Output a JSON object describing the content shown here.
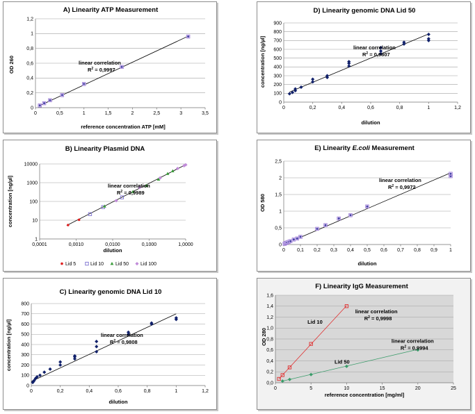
{
  "chart_data": [
    {
      "id": "A",
      "type": "scatter",
      "title": "A) Linearity ATP Measurement",
      "xlabel": "reference concentration ATP [mM]",
      "ylabel": "OD 260",
      "xlim": [
        0,
        3.5
      ],
      "ylim": [
        0,
        1.2
      ],
      "xticks": [
        0,
        0.5,
        1,
        1.5,
        2,
        2.5,
        3,
        3.5
      ],
      "yticks": [
        0,
        0.2,
        0.4,
        0.6,
        0.8,
        1,
        1.2
      ],
      "xtick_labels": [
        "0",
        "0,5",
        "1",
        "1,5",
        "2",
        "2,5",
        "3",
        "3,5"
      ],
      "ytick_labels": [
        "0",
        "0,2",
        "0,4",
        "0,6",
        "0,8",
        "1",
        "1,2"
      ],
      "grid": "horizontal",
      "annotation": [
        "linear correlation",
        "R",
        "2",
        " = 0,9997"
      ],
      "series": [
        {
          "marker": "mixed-purple",
          "x": [
            0.09,
            0.18,
            0.3,
            0.55,
            1.0,
            1.78,
            3.15
          ],
          "y": [
            0.03,
            0.06,
            0.1,
            0.17,
            0.32,
            0.55,
            0.96
          ]
        }
      ],
      "trendline": [
        [
          0.08,
          0.025
        ],
        [
          3.15,
          0.965
        ]
      ]
    },
    {
      "id": "B",
      "type": "scatter",
      "title": "B) Linearity Plasmid DNA",
      "xlabel": "dilution",
      "ylabel": "concentration [ng/µl]",
      "xscale": "log",
      "yscale": "log",
      "xlim": [
        0.0001,
        1
      ],
      "ylim": [
        1,
        10000
      ],
      "xticks": [
        0.0001,
        0.001,
        0.01,
        0.1,
        1
      ],
      "yticks": [
        1,
        10,
        100,
        1000,
        10000
      ],
      "xtick_labels": [
        "0,0001",
        "0,0010",
        "0,0100",
        "0,1000",
        "1,0000"
      ],
      "ytick_labels": [
        "1",
        "10",
        "100",
        "1000",
        "10000"
      ],
      "grid": "horizontal",
      "annotation": [
        "linear correlation",
        "R",
        "2",
        " = 0,9989"
      ],
      "legend": {
        "position": "bottom",
        "entries": [
          "Lid 5",
          "Lid 10",
          "Lid 50",
          "Lid 100"
        ]
      },
      "series": [
        {
          "name": "Lid 5",
          "color": "#e02020",
          "marker": "dot",
          "x": [
            0.0006,
            0.0012
          ],
          "y": [
            5.5,
            10.5
          ]
        },
        {
          "name": "Lid 10",
          "color": "#7a6fcf",
          "marker": "square",
          "x": [
            0.0024,
            0.0055,
            0.018
          ],
          "y": [
            21,
            50,
            165
          ]
        },
        {
          "name": "Lid 50",
          "color": "#3a9c3a",
          "marker": "triangle",
          "x": [
            0.006,
            0.036,
            0.085,
            0.18,
            0.32,
            0.44
          ],
          "y": [
            55,
            330,
            700,
            1500,
            3000,
            4200
          ]
        },
        {
          "name": "Lid 100",
          "color": "#c08ad8",
          "marker": "diamond",
          "x": [
            0.0125,
            0.055,
            0.2,
            0.6,
            0.9,
            1.0
          ],
          "y": [
            110,
            560,
            1800,
            5700,
            8000,
            9000
          ]
        }
      ],
      "trendline": [
        [
          0.00055,
          5.2
        ],
        [
          1.0,
          9200
        ]
      ]
    },
    {
      "id": "C",
      "type": "scatter",
      "title": "C) Linearity genomic DNA Lid 10",
      "xlabel": "dilution",
      "ylabel": "concentration [ng/µl]",
      "xlim": [
        0,
        1.2
      ],
      "ylim": [
        0,
        800
      ],
      "xticks": [
        0,
        0.2,
        0.4,
        0.6,
        0.8,
        1,
        1.2
      ],
      "yticks": [
        0,
        100,
        200,
        300,
        400,
        500,
        600,
        700,
        800
      ],
      "xtick_labels": [
        "0",
        "0,2",
        "0,4",
        "0,6",
        "0,8",
        "1",
        "1,2"
      ],
      "ytick_labels": [
        "0",
        "100",
        "200",
        "300",
        "400",
        "500",
        "600",
        "700",
        "800"
      ],
      "grid": "horizontal",
      "annotation": [
        "linear correlation",
        "R",
        "2",
        " = 0,9808"
      ],
      "series": [
        {
          "color": "#10206a",
          "marker": "diamond",
          "x": [
            0.01,
            0.015,
            0.02,
            0.03,
            0.04,
            0.06,
            0.09,
            0.13,
            0.2,
            0.2,
            0.3,
            0.3,
            0.3,
            0.45,
            0.45,
            0.45,
            0.67,
            0.67,
            0.83,
            0.83,
            1.0,
            1.0
          ],
          "y": [
            30,
            40,
            50,
            70,
            85,
            100,
            130,
            160,
            200,
            230,
            260,
            280,
            290,
            330,
            380,
            430,
            500,
            520,
            600,
            610,
            645,
            660
          ]
        }
      ],
      "trendline": [
        [
          0.0,
          40
        ],
        [
          1.0,
          700
        ]
      ]
    },
    {
      "id": "D",
      "type": "scatter",
      "title": "D) Linearity genomic DNA Lid 50",
      "xlabel": "dilution",
      "ylabel": "concentration [ng/µl]",
      "xlim": [
        0,
        1.2
      ],
      "ylim": [
        0,
        900
      ],
      "xticks": [
        0,
        0.2,
        0.4,
        0.6,
        0.8,
        1,
        1.2
      ],
      "yticks": [
        0,
        100,
        200,
        300,
        400,
        500,
        600,
        700,
        800,
        900
      ],
      "xtick_labels": [
        "0",
        "0,2",
        "0,4",
        "0,6",
        "0,8",
        "1",
        "1,2"
      ],
      "ytick_labels": [
        "0",
        "100",
        "200",
        "300",
        "400",
        "500",
        "600",
        "700",
        "800",
        "900"
      ],
      "grid": "horizontal",
      "annotation": [
        "linear correlation",
        "R",
        "2",
        " = 0,9807"
      ],
      "series": [
        {
          "color": "#10206a",
          "marker": "diamond",
          "x": [
            0.04,
            0.06,
            0.08,
            0.08,
            0.12,
            0.2,
            0.2,
            0.3,
            0.3,
            0.45,
            0.45,
            0.45,
            0.67,
            0.67,
            0.67,
            0.83,
            0.83,
            1.0,
            1.0,
            1.0
          ],
          "y": [
            95,
            110,
            130,
            150,
            170,
            230,
            260,
            280,
            300,
            410,
            440,
            460,
            550,
            580,
            620,
            660,
            680,
            700,
            720,
            770
          ]
        }
      ],
      "trendline": [
        [
          0.04,
          115
        ],
        [
          1.0,
          775
        ]
      ]
    },
    {
      "id": "E",
      "type": "scatter",
      "title": "E) Linearity E.coli Measurement",
      "title_parts": [
        "E) Linearity ",
        "E.coli",
        " Measurement"
      ],
      "xlabel": "dilution",
      "ylabel": "OD 580",
      "xlim": [
        0,
        1
      ],
      "ylim": [
        0,
        2.5
      ],
      "xticks": [
        0,
        0.1,
        0.2,
        0.3,
        0.4,
        0.5,
        0.6,
        0.7,
        0.8,
        0.9,
        1
      ],
      "yticks": [
        0,
        0.5,
        1,
        1.5,
        2,
        2.5
      ],
      "xtick_labels": [
        "0",
        "0,1",
        "0,2",
        "0,3",
        "0,4",
        "0,5",
        "0,6",
        "0,7",
        "0,8",
        "0,9",
        "1"
      ],
      "ytick_labels": [
        "0",
        "0,5",
        "1",
        "1,5",
        "2",
        "2,5"
      ],
      "grid": "horizontal",
      "annotation": [
        "linear correlation",
        "R",
        "2",
        " = 0,9972"
      ],
      "series": [
        {
          "marker": "mixed-purple",
          "x": [
            0.005,
            0.01,
            0.015,
            0.02,
            0.03,
            0.04,
            0.06,
            0.08,
            0.1,
            0.2,
            0.25,
            0.33,
            0.4,
            0.5,
            1.0,
            1.0
          ],
          "y": [
            0.02,
            0.04,
            0.05,
            0.06,
            0.08,
            0.1,
            0.15,
            0.18,
            0.23,
            0.47,
            0.58,
            0.78,
            0.88,
            1.14,
            2.05,
            2.12
          ]
        }
      ],
      "trendline": [
        [
          0.0,
          0.0
        ],
        [
          1.0,
          2.15
        ]
      ]
    },
    {
      "id": "F",
      "type": "scatter",
      "title": "F) Linearity IgG Measurement",
      "xlabel": "reference concentration [mg/ml]",
      "ylabel": "OD 280",
      "xlim": [
        0,
        25
      ],
      "ylim": [
        0,
        1.6
      ],
      "xticks": [
        0,
        5,
        10,
        15,
        20,
        25
      ],
      "yticks": [
        0,
        0.2,
        0.4,
        0.6,
        0.8,
        1,
        1.2,
        1.4,
        1.6
      ],
      "xtick_labels": [
        "0",
        "5",
        "10",
        "15",
        "20",
        "25"
      ],
      "ytick_labels": [
        "0,0",
        "0,2",
        "0,4",
        "0,6",
        "0,8",
        "1,0",
        "1,2",
        "1,4",
        "1,6"
      ],
      "grid": "horizontal",
      "background": "#d8d8d8",
      "series": [
        {
          "name": "Lid 10",
          "color": "#e03030",
          "marker": "square",
          "x": [
            0.5,
            1,
            2,
            5,
            10
          ],
          "y": [
            0.07,
            0.14,
            0.28,
            0.71,
            1.4
          ],
          "trendline": [
            [
              0.5,
              0.07
            ],
            [
              10,
              1.41
            ]
          ],
          "label_at": [
            4.5,
            1.08
          ],
          "annotation": [
            "linear correlation",
            "R",
            "2",
            " = 0,9998"
          ],
          "annotation_at": [
            11.2,
            1.27
          ]
        },
        {
          "name": "Lid 50",
          "color": "#3a9c6a",
          "marker": "diamond",
          "x": [
            1,
            2,
            5,
            10,
            20
          ],
          "y": [
            0.03,
            0.06,
            0.15,
            0.3,
            0.6
          ],
          "trendline": [
            [
              1,
              0.03
            ],
            [
              20,
              0.61
            ]
          ],
          "label_at": [
            8.3,
            0.35
          ],
          "annotation": [
            "linear correlation",
            "R",
            "2",
            " = 0,9994"
          ],
          "annotation_at": [
            16.3,
            0.73
          ]
        }
      ]
    }
  ]
}
